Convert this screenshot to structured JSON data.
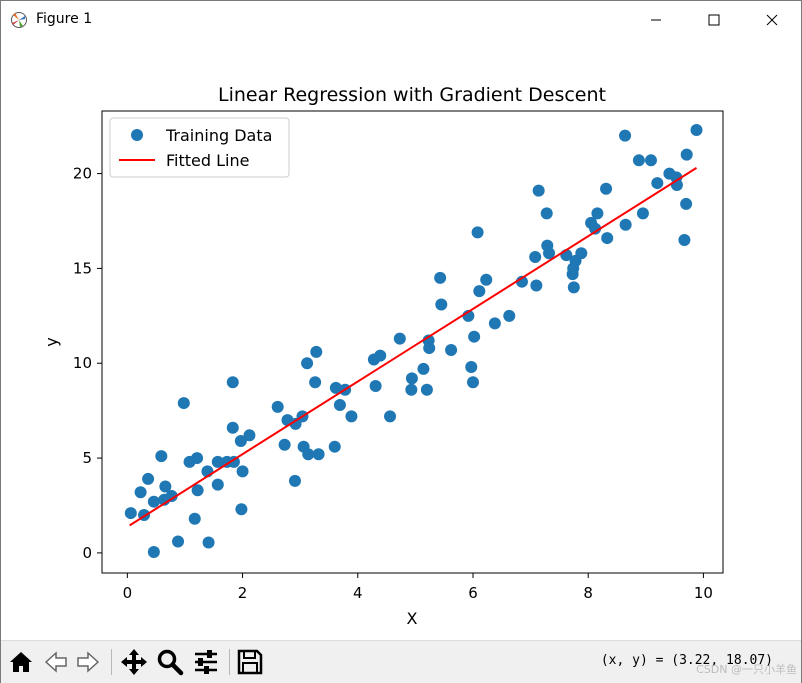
{
  "window": {
    "title": "Figure 1",
    "app_icon": "matplotlib-icon",
    "controls": [
      "minimize-icon",
      "maximize-icon",
      "close-icon"
    ]
  },
  "toolbar": {
    "tools": [
      "home-icon",
      "back-icon",
      "forward-icon",
      "pan-icon",
      "zoom-icon",
      "configure-subplots-icon",
      "save-icon"
    ],
    "coordinates": "(x, y) = (3.22, 18.07)",
    "watermark": "CSDN @一只小羊鱼"
  },
  "chart_data": {
    "type": "scatter",
    "title": "Linear Regression with Gradient Descent",
    "xlabel": "X",
    "ylabel": "y",
    "xlim": [
      -0.44,
      10.34
    ],
    "ylim": [
      -1.06,
      23.3
    ],
    "xticks": [
      "0",
      "2",
      "4",
      "6",
      "8",
      "10"
    ],
    "yticks": [
      "0",
      "5",
      "10",
      "15",
      "20"
    ],
    "grid": false,
    "legend_placement": "top-left",
    "colors": {
      "scatter": "#1f77b4",
      "line": "#ff0000"
    },
    "series": [
      {
        "name": "Training Data",
        "kind": "scatter",
        "points": [
          [
            0.06,
            2.1
          ],
          [
            0.23,
            3.2
          ],
          [
            0.29,
            2.0
          ],
          [
            0.36,
            3.9
          ],
          [
            0.46,
            2.7
          ],
          [
            0.46,
            0.05
          ],
          [
            0.59,
            5.1
          ],
          [
            0.64,
            2.8
          ],
          [
            0.66,
            3.5
          ],
          [
            0.77,
            3.0
          ],
          [
            0.88,
            0.6
          ],
          [
            0.98,
            7.9
          ],
          [
            1.08,
            4.8
          ],
          [
            1.17,
            1.8
          ],
          [
            1.21,
            5.0
          ],
          [
            1.22,
            3.3
          ],
          [
            1.39,
            4.3
          ],
          [
            1.41,
            0.55
          ],
          [
            1.57,
            4.8
          ],
          [
            1.57,
            3.6
          ],
          [
            1.73,
            4.8
          ],
          [
            1.83,
            6.6
          ],
          [
            1.83,
            9.0
          ],
          [
            1.85,
            4.8
          ],
          [
            1.97,
            5.9
          ],
          [
            1.98,
            2.3
          ],
          [
            2.0,
            4.3
          ],
          [
            2.12,
            6.2
          ],
          [
            2.61,
            7.7
          ],
          [
            2.73,
            5.7
          ],
          [
            2.78,
            7.0
          ],
          [
            2.91,
            3.8
          ],
          [
            2.92,
            6.8
          ],
          [
            3.04,
            7.2
          ],
          [
            3.06,
            5.6
          ],
          [
            3.12,
            10.0
          ],
          [
            3.14,
            5.2
          ],
          [
            3.26,
            9.0
          ],
          [
            3.28,
            10.6
          ],
          [
            3.32,
            5.2
          ],
          [
            3.6,
            5.6
          ],
          [
            3.62,
            8.7
          ],
          [
            3.69,
            7.8
          ],
          [
            3.78,
            8.6
          ],
          [
            3.89,
            7.2
          ],
          [
            4.28,
            10.2
          ],
          [
            4.31,
            8.8
          ],
          [
            4.39,
            10.4
          ],
          [
            4.56,
            7.2
          ],
          [
            4.73,
            11.3
          ],
          [
            4.93,
            8.6
          ],
          [
            4.94,
            9.2
          ],
          [
            5.14,
            9.7
          ],
          [
            5.2,
            8.6
          ],
          [
            5.23,
            11.2
          ],
          [
            5.24,
            10.8
          ],
          [
            5.43,
            14.5
          ],
          [
            5.45,
            13.1
          ],
          [
            5.62,
            10.7
          ],
          [
            5.92,
            12.5
          ],
          [
            5.97,
            9.8
          ],
          [
            6.0,
            9.0
          ],
          [
            6.02,
            11.4
          ],
          [
            6.08,
            16.9
          ],
          [
            6.11,
            13.8
          ],
          [
            6.23,
            14.4
          ],
          [
            6.38,
            12.1
          ],
          [
            6.63,
            12.5
          ],
          [
            6.85,
            14.3
          ],
          [
            7.08,
            15.6
          ],
          [
            7.1,
            14.1
          ],
          [
            7.14,
            19.1
          ],
          [
            7.28,
            17.9
          ],
          [
            7.29,
            16.2
          ],
          [
            7.32,
            15.8
          ],
          [
            7.62,
            15.7
          ],
          [
            7.73,
            14.7
          ],
          [
            7.74,
            15.0
          ],
          [
            7.75,
            14.0
          ],
          [
            7.78,
            15.4
          ],
          [
            7.88,
            15.8
          ],
          [
            8.05,
            17.4
          ],
          [
            8.12,
            17.1
          ],
          [
            8.16,
            17.9
          ],
          [
            8.31,
            19.2
          ],
          [
            8.33,
            16.6
          ],
          [
            8.64,
            22.0
          ],
          [
            8.65,
            17.3
          ],
          [
            8.88,
            20.7
          ],
          [
            8.95,
            17.9
          ],
          [
            9.09,
            20.7
          ],
          [
            9.2,
            19.5
          ],
          [
            9.41,
            20.0
          ],
          [
            9.53,
            19.8
          ],
          [
            9.54,
            19.4
          ],
          [
            9.67,
            16.5
          ],
          [
            9.7,
            18.4
          ],
          [
            9.71,
            21.0
          ],
          [
            9.88,
            22.3
          ]
        ]
      },
      {
        "name": "Fitted Line",
        "kind": "line",
        "points": [
          [
            0.04,
            1.45
          ],
          [
            9.88,
            20.3
          ]
        ]
      }
    ]
  }
}
